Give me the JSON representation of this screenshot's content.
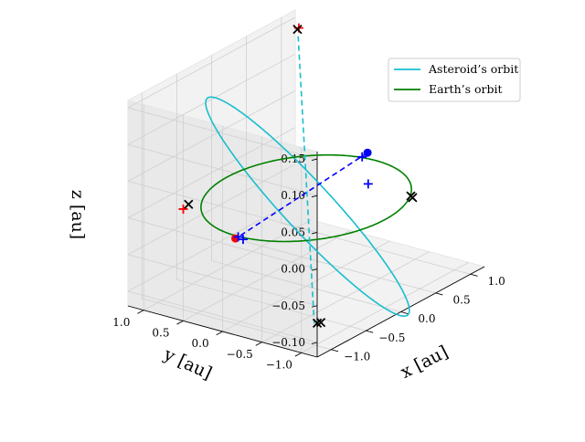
{
  "chart_data": {
    "type": "line",
    "projection": "3d",
    "axes": {
      "x": {
        "label": "x [au]",
        "range": [
          -1.2,
          1.2
        ],
        "ticks": [
          "−1.0",
          "−0.5",
          "0.0",
          "0.5",
          "1.0"
        ]
      },
      "y": {
        "label": "y [au]",
        "range": [
          -1.2,
          1.2
        ],
        "ticks": [
          "−1.0",
          "−0.5",
          "0.0",
          "0.5",
          "1.0"
        ]
      },
      "z": {
        "label": "z [au]",
        "range": [
          -0.12,
          0.16
        ],
        "ticks": [
          "−0.10",
          "−0.05",
          "0.00",
          "0.05",
          "0.10",
          "0.15"
        ]
      }
    },
    "grid": true,
    "legend_position": "top-right",
    "series": [
      {
        "name": "Asteroid’s orbit",
        "color": "#17becf",
        "style": "solid",
        "orbit": {
          "a": 1.0,
          "e": 0.2,
          "inclination_deg": 9,
          "node_deg": 45,
          "periapsis_deg": 0
        }
      },
      {
        "name": "Earth’s orbit",
        "color": "#008000",
        "style": "solid",
        "orbit": {
          "radius": 1.0
        }
      }
    ],
    "dashed_lines": [
      {
        "color": "#17becf",
        "points": [
          [
            0.88,
            0.88,
            0.15
          ],
          [
            -0.88,
            -0.88,
            -0.1
          ]
        ]
      },
      {
        "color": "#0000ff",
        "points": [
          [
            0.45,
            -0.38,
            0.05
          ],
          [
            -0.74,
            0.2,
            -0.02
          ]
        ]
      }
    ],
    "markers": [
      {
        "symbol": "dot",
        "color": "#0000ff",
        "position": [
          0.45,
          -0.38,
          0.05
        ]
      },
      {
        "symbol": "dot",
        "color": "#ff0000",
        "position": [
          -0.79,
          0.2,
          -0.02
        ]
      },
      {
        "symbol": "plus",
        "color": "#ff0000",
        "position": [
          0.9,
          0.89,
          0.16
        ]
      },
      {
        "symbol": "plus",
        "color": "#ff0000",
        "position": [
          -0.78,
          0.87,
          0.0
        ]
      },
      {
        "symbol": "plus",
        "color": "#0000ff",
        "position": [
          0.35,
          -0.4,
          0.05
        ]
      },
      {
        "symbol": "plus",
        "color": "#0000ff",
        "position": [
          0.55,
          -0.3,
          0.0
        ]
      },
      {
        "symbol": "plus",
        "color": "#0000ff",
        "position": [
          -0.75,
          0.2,
          -0.02
        ]
      },
      {
        "symbol": "plus",
        "color": "#0000ff",
        "position": [
          -0.77,
          0.12,
          -0.02
        ]
      },
      {
        "symbol": "cross",
        "color": "#000000",
        "position": [
          0.87,
          0.88,
          0.16
        ]
      },
      {
        "symbol": "cross",
        "color": "#000000",
        "position": [
          -0.67,
          0.9,
          0.0
        ]
      },
      {
        "symbol": "cross",
        "color": "#000000",
        "position": [
          0.78,
          -0.66,
          -0.02
        ]
      },
      {
        "symbol": "cross",
        "color": "#000000",
        "position": [
          0.8,
          -0.62,
          -0.02
        ]
      },
      {
        "symbol": "cross",
        "color": "#000000",
        "position": [
          -0.86,
          -0.9,
          -0.1
        ]
      },
      {
        "symbol": "cross",
        "color": "#000000",
        "position": [
          -0.83,
          -0.92,
          -0.1
        ]
      }
    ]
  }
}
